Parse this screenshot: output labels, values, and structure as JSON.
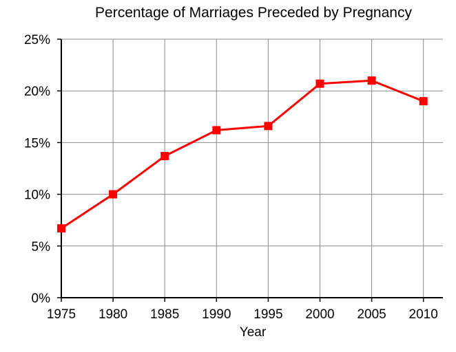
{
  "chart_data": {
    "type": "line",
    "title": "Percentage of Marriages Preceded by Pregnancy",
    "xlabel": "Year",
    "ylabel": "",
    "x": [
      1975,
      1980,
      1985,
      1990,
      1995,
      2000,
      2005,
      2010
    ],
    "series": [
      {
        "values": [
          6.7,
          10.0,
          13.7,
          16.2,
          16.6,
          20.7,
          21.0,
          19.0
        ],
        "color": "#ff0000",
        "marker": "square"
      }
    ],
    "xlim": [
      1975,
      2010
    ],
    "ylim": [
      0,
      25
    ],
    "x_ticks": [
      "1975",
      "1980",
      "1985",
      "1990",
      "1995",
      "2000",
      "2005",
      "2010"
    ],
    "y_ticks": [
      "0%",
      "5%",
      "10%",
      "15%",
      "20%",
      "25%"
    ],
    "grid": true,
    "legend": "none"
  }
}
